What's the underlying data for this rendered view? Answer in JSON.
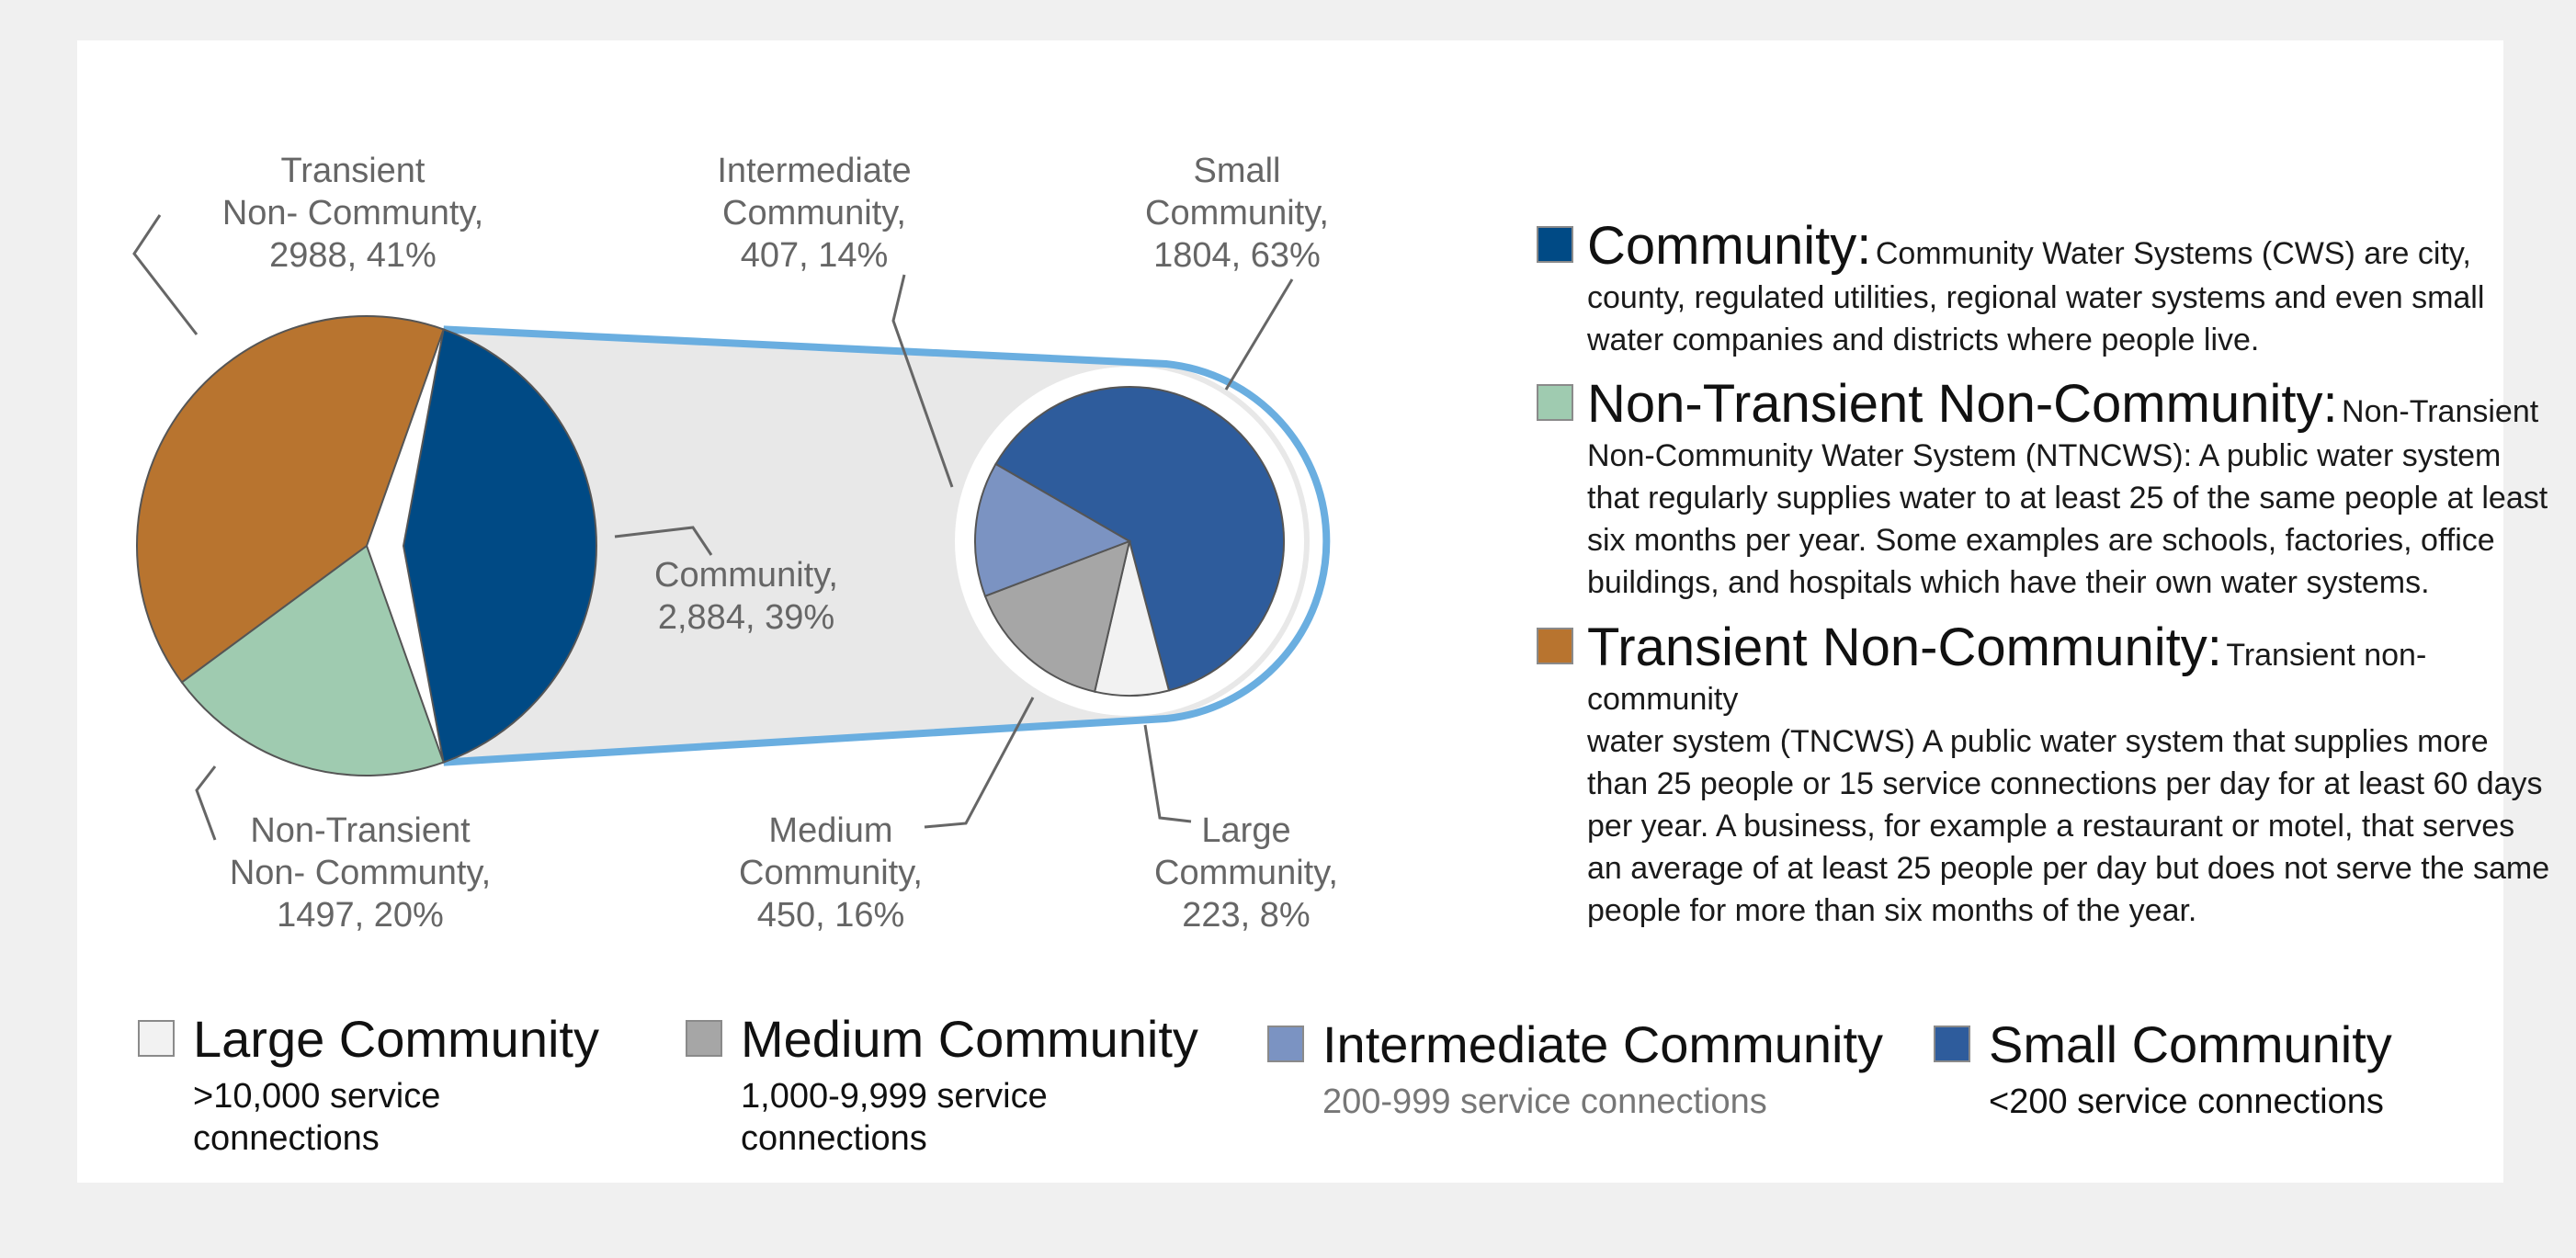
{
  "chart_data": [
    {
      "type": "pie",
      "slices": [
        {
          "name": "Community",
          "value": 2884,
          "percent_label": "39%",
          "value_label": "2,884",
          "color": "#004a85"
        },
        {
          "name": "Non-Transient Non- Communty",
          "value": 1497,
          "percent_label": "20%",
          "value_label": "1497",
          "color": "#9fcbb0"
        },
        {
          "name": "Transient Non- Communty",
          "value": 2988,
          "percent_label": "41%",
          "value_label": "2988",
          "color": "#b8742f"
        }
      ]
    },
    {
      "type": "pie",
      "slices": [
        {
          "name": "Small Community",
          "value": 1804,
          "percent_label": "63%",
          "value_label": "1804",
          "color": "#2e5c9c"
        },
        {
          "name": "Large Community",
          "value": 223,
          "percent_label": "8%",
          "value_label": "223",
          "color": "#f2f2f2"
        },
        {
          "name": "Medium Community",
          "value": 450,
          "percent_label": "16%",
          "value_label": "450",
          "color": "#a6a6a6"
        },
        {
          "name": "Intermediate Community",
          "value": 407,
          "percent_label": "14%",
          "value_label": "407",
          "color": "#7b93c2"
        }
      ]
    }
  ],
  "labels": {
    "transient": [
      "Transient",
      "Non- Communty,",
      "2988, 41%"
    ],
    "non_transient": [
      "Non-Transient",
      "Non- Communty,",
      "1497, 20%"
    ],
    "community": [
      "Community,",
      "2,884, 39%"
    ],
    "intermediate": [
      "Intermediate",
      "Community,",
      "407, 14%"
    ],
    "small": [
      "Small",
      "Community,",
      "1804, 63%"
    ],
    "medium": [
      "Medium",
      "Community,",
      "450, 16%"
    ],
    "large": [
      "Large",
      "Community,",
      "223, 8%"
    ]
  },
  "definitions": [
    {
      "title": "Community:",
      "body_inline": "Community Water Systems (CWS) are city,",
      "body": "county, regulated utilities, regional water systems and even small water companies and districts where people live.",
      "color": "#004a85"
    },
    {
      "title": "Non-Transient Non-Community:",
      "body_inline": "Non-Transient",
      "body": "Non-Community Water System (NTNCWS): A public water system that regularly supplies water to at least 25 of the same people at least six months per year. Some examples are schools, factories, office buildings, and hospitals which have their own water systems.",
      "color": "#9fcbb0"
    },
    {
      "title": "Transient Non-Community:",
      "body_inline": "Transient non-community",
      "body": "water system (TNCWS) A public water system that supplies more than 25 people  or 15 service connections per day for at least 60 days per year. A business, for example a restaurant or motel, that serves an average of at least 25 people per day but does not serve the same people for more than six months of the year.",
      "color": "#b8742f"
    }
  ],
  "legend": [
    {
      "name": "Large Community",
      "desc_1": ">10,000 service",
      "desc_2": "connections",
      "color": "#f2f2f2",
      "desc_color": "#111111"
    },
    {
      "name": "Medium Community",
      "desc_1": "1,000-9,999 service",
      "desc_2": "connections",
      "color": "#a6a6a6",
      "desc_color": "#111111"
    },
    {
      "name": "Intermediate Community",
      "desc_1": "200-999 service connections",
      "desc_2": "",
      "color": "#7b93c2",
      "desc_color": "#777777"
    },
    {
      "name": "Small Community",
      "desc_1": "<200 service connections",
      "desc_2": "",
      "color": "#2e5c9c",
      "desc_color": "#111111"
    }
  ],
  "colors": {
    "connector": "#e8e8e8",
    "highlight_outline": "#6aaee0",
    "leader_line": "#666666"
  }
}
